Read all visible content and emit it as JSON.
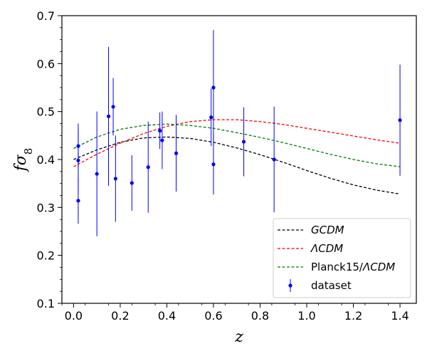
{
  "chart_data": {
    "type": "scatter",
    "title": "",
    "xlabel": "z",
    "ylabel_main": "fσ",
    "ylabel_sub": "8",
    "xlim": [
      -0.05,
      1.47
    ],
    "ylim": [
      0.1,
      0.7
    ],
    "x_ticks": [
      0.0,
      0.2,
      0.4,
      0.6,
      0.8,
      1.0,
      1.2,
      1.4
    ],
    "x_tick_labels": [
      "0.0",
      "0.2",
      "0.4",
      "0.6",
      "0.8",
      "1.0",
      "1.2",
      "1.4"
    ],
    "y_ticks": [
      0.1,
      0.2,
      0.3,
      0.4,
      0.5,
      0.6,
      0.7
    ],
    "y_tick_labels": [
      "0.1",
      "0.2",
      "0.3",
      "0.4",
      "0.5",
      "0.6",
      "0.7"
    ],
    "grid": false,
    "legend_position": "bottom-right",
    "series": [
      {
        "name": "GCDM",
        "legend_italic": true,
        "kind": "line",
        "style": "dashed",
        "color": "#000000",
        "x": [
          0.0,
          0.1,
          0.2,
          0.3,
          0.4,
          0.5,
          0.6,
          0.7,
          0.8,
          0.9,
          1.0,
          1.1,
          1.2,
          1.3,
          1.4
        ],
        "y": [
          0.4,
          0.42,
          0.436,
          0.445,
          0.447,
          0.444,
          0.436,
          0.424,
          0.41,
          0.394,
          0.377,
          0.361,
          0.347,
          0.336,
          0.328
        ]
      },
      {
        "name": "ΛCDM",
        "legend_italic": true,
        "kind": "line",
        "style": "dashed",
        "color": "#ff0000",
        "x": [
          0.0,
          0.1,
          0.2,
          0.3,
          0.4,
          0.5,
          0.6,
          0.7,
          0.8,
          0.9,
          1.0,
          1.1,
          1.2,
          1.3,
          1.4
        ],
        "y": [
          0.385,
          0.411,
          0.434,
          0.454,
          0.469,
          0.479,
          0.483,
          0.483,
          0.479,
          0.473,
          0.465,
          0.457,
          0.449,
          0.441,
          0.434
        ]
      },
      {
        "name_plain": "Planck15/",
        "name_italic": "ΛCDM",
        "kind": "line",
        "style": "dashed",
        "color": "#008000",
        "x": [
          0.0,
          0.1,
          0.2,
          0.3,
          0.4,
          0.5,
          0.6,
          0.7,
          0.8,
          0.9,
          1.0,
          1.1,
          1.2,
          1.3,
          1.4
        ],
        "y": [
          0.423,
          0.447,
          0.463,
          0.471,
          0.474,
          0.471,
          0.465,
          0.456,
          0.446,
          0.435,
          0.423,
          0.411,
          0.4,
          0.391,
          0.385
        ]
      },
      {
        "name": "dataset",
        "kind": "errorbar",
        "color": "#0000ff",
        "points": [
          {
            "x": 0.02,
            "y": 0.428,
            "err": 0.047
          },
          {
            "x": 0.02,
            "y": 0.398,
            "err": 0.065
          },
          {
            "x": 0.02,
            "y": 0.314,
            "err": 0.048
          },
          {
            "x": 0.1,
            "y": 0.37,
            "err": 0.13
          },
          {
            "x": 0.15,
            "y": 0.49,
            "err": 0.145
          },
          {
            "x": 0.17,
            "y": 0.51,
            "err": 0.06
          },
          {
            "x": 0.18,
            "y": 0.36,
            "err": 0.09
          },
          {
            "x": 0.25,
            "y": 0.351,
            "err": 0.058
          },
          {
            "x": 0.32,
            "y": 0.384,
            "err": 0.095
          },
          {
            "x": 0.37,
            "y": 0.46,
            "err": 0.038
          },
          {
            "x": 0.38,
            "y": 0.44,
            "err": 0.06
          },
          {
            "x": 0.44,
            "y": 0.413,
            "err": 0.08
          },
          {
            "x": 0.59,
            "y": 0.488,
            "err": 0.06
          },
          {
            "x": 0.6,
            "y": 0.55,
            "err": 0.12
          },
          {
            "x": 0.6,
            "y": 0.39,
            "err": 0.063
          },
          {
            "x": 0.73,
            "y": 0.437,
            "err": 0.072
          },
          {
            "x": 0.86,
            "y": 0.4,
            "err": 0.11
          },
          {
            "x": 1.4,
            "y": 0.482,
            "err": 0.116
          }
        ]
      }
    ]
  }
}
